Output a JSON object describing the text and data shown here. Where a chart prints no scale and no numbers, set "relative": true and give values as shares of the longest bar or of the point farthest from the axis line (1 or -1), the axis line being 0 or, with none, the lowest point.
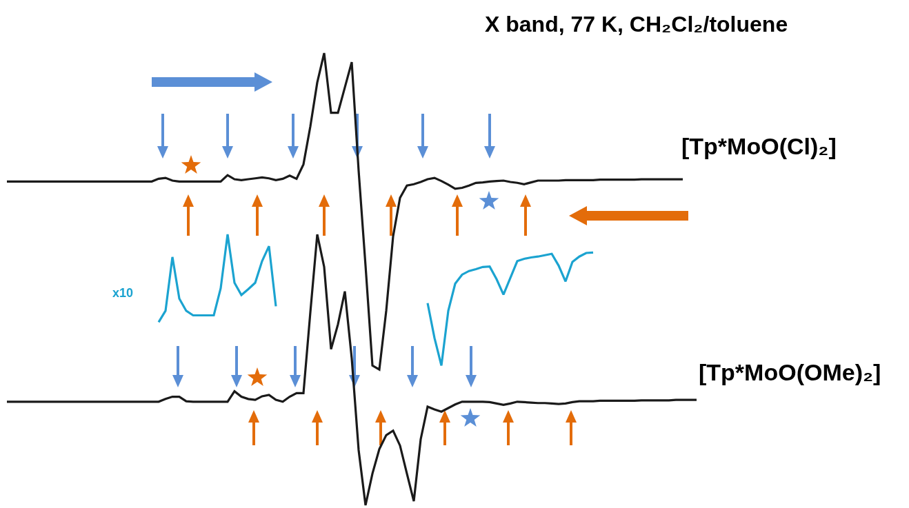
{
  "chart_data": {
    "type": "line",
    "relative": true,
    "title": "X band, 77 K, CH₂Cl₂/toluene",
    "categories": [
      null,
      null,
      null,
      null,
      null,
      null,
      null,
      null,
      null,
      null,
      null,
      null,
      null,
      null,
      null,
      null,
      null,
      null,
      null,
      null,
      null,
      null,
      null,
      null,
      null,
      null,
      null,
      null,
      null,
      null,
      null,
      null,
      null,
      null,
      null,
      null,
      null,
      null,
      null,
      null,
      null,
      null,
      null,
      null,
      null,
      null,
      null,
      null,
      null,
      null,
      null,
      null,
      null,
      null,
      null,
      null,
      null,
      null,
      null,
      null,
      null,
      null,
      null,
      null,
      null,
      null,
      null,
      null,
      null,
      null,
      null,
      null,
      null,
      null,
      null,
      null,
      null,
      null,
      null,
      null,
      null,
      null,
      null,
      null,
      null,
      null,
      null,
      null,
      null,
      null,
      null,
      null,
      null,
      null,
      null,
      null,
      null,
      null,
      null,
      null,
      null
    ],
    "series": [
      {
        "name": "[Tp*MoO(Cl)₂]",
        "color": "#1a1a1a",
        "values": [
          0.716,
          0.716,
          0.716,
          0.716,
          0.716,
          0.716,
          0.716,
          0.716,
          0.716,
          0.716,
          0.716,
          0.716,
          0.716,
          0.716,
          0.716,
          0.716,
          0.716,
          0.716,
          0.716,
          0.716,
          0.716,
          0.716,
          0.722,
          0.724,
          0.718,
          0.716,
          0.716,
          0.716,
          0.716,
          0.716,
          0.716,
          0.716,
          0.73,
          0.721,
          0.719,
          0.721,
          0.723,
          0.725,
          0.723,
          0.719,
          0.722,
          0.729,
          0.722,
          0.754,
          0.838,
          0.935,
          1.0,
          0.868,
          0.868,
          0.924,
          0.98,
          0.74,
          0.53,
          0.309,
          0.3,
          0.43,
          0.595,
          0.68,
          0.707,
          0.71,
          0.715,
          0.721,
          0.724,
          0.717,
          0.709,
          0.7,
          0.702,
          0.707,
          0.713,
          0.714,
          0.716,
          0.717,
          0.718,
          0.715,
          0.713,
          0.71,
          0.714,
          0.718,
          0.718,
          0.718,
          0.718,
          0.719,
          0.719,
          0.719,
          0.719,
          0.719,
          0.72,
          0.72,
          0.72,
          0.72,
          0.72,
          0.72,
          0.721,
          0.721,
          0.721,
          0.721,
          0.721,
          0.721,
          0.721,
          null,
          null
        ]
      },
      {
        "name": "[Tp*MoO(OMe)₂]",
        "color": "#1a1a1a",
        "values": [
          0.229,
          0.229,
          0.229,
          0.229,
          0.229,
          0.229,
          0.229,
          0.229,
          0.229,
          0.229,
          0.229,
          0.229,
          0.229,
          0.229,
          0.229,
          0.229,
          0.229,
          0.229,
          0.229,
          0.229,
          0.229,
          0.229,
          0.229,
          0.235,
          0.24,
          0.24,
          0.23,
          0.229,
          0.229,
          0.229,
          0.229,
          0.229,
          0.229,
          0.252,
          0.24,
          0.235,
          0.233,
          0.241,
          0.244,
          0.233,
          0.229,
          0.24,
          0.248,
          0.248,
          0.427,
          0.599,
          0.527,
          0.345,
          0.4,
          0.473,
          0.325,
          0.122,
          0,
          0.07,
          0.124,
          0.155,
          0.165,
          0.132,
          0.07,
          0.009,
          0.146,
          0.218,
          0.212,
          0.207,
          0.215,
          0.223,
          0.229,
          0.229,
          0.229,
          0.229,
          0.228,
          0.225,
          0.222,
          0.225,
          0.229,
          0.228,
          0.227,
          0.226,
          0.226,
          0.225,
          0.224,
          0.225,
          0.228,
          0.23,
          0.23,
          0.23,
          0.231,
          0.231,
          0.231,
          0.231,
          0.231,
          0.231,
          0.232,
          0.232,
          0.232,
          0.232,
          0.232,
          0.233,
          0.233,
          0.233,
          0.233
        ]
      },
      {
        "name": "x10",
        "color": "#1ba3d0",
        "values": [
          null,
          null,
          null,
          null,
          null,
          null,
          null,
          null,
          null,
          null,
          null,
          null,
          null,
          null,
          null,
          null,
          null,
          null,
          null,
          null,
          null,
          null,
          0.405,
          0.43,
          0.549,
          0.457,
          0.43,
          0.42,
          0.42,
          0.42,
          0.42,
          0.48,
          0.599,
          0.492,
          0.465,
          0.478,
          0.492,
          0.54,
          0.573,
          0.44,
          null,
          null,
          null,
          null,
          null,
          null,
          null,
          null,
          null,
          null,
          null,
          null,
          null,
          null,
          null,
          null,
          null,
          null,
          null,
          null,
          null,
          0.447,
          0.37,
          0.309,
          0.43,
          0.49,
          0.51,
          0.518,
          0.522,
          0.527,
          0.528,
          0.5,
          0.466,
          0.503,
          0.54,
          0.545,
          0.548,
          0.55,
          0.553,
          0.556,
          0.53,
          0.495,
          0.538,
          0.55,
          0.558,
          0.559,
          null,
          null,
          null,
          null,
          null,
          null,
          null,
          null,
          null,
          null,
          null,
          null,
          null,
          null,
          null
        ]
      }
    ]
  }
}
